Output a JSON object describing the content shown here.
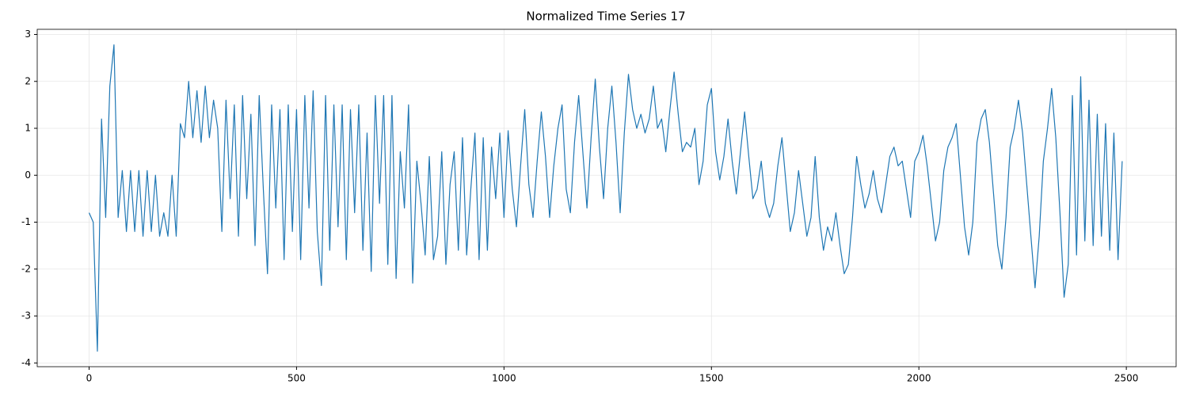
{
  "chart_data": {
    "type": "line",
    "title": "Normalized Time Series 17",
    "x": [
      0,
      10,
      20,
      30,
      40,
      50,
      60,
      70,
      80,
      90,
      100,
      110,
      120,
      130,
      140,
      150,
      160,
      170,
      180,
      190,
      200,
      210,
      220,
      230,
      240,
      250,
      260,
      270,
      280,
      290,
      300,
      310,
      320,
      330,
      340,
      350,
      360,
      370,
      380,
      390,
      400,
      410,
      420,
      430,
      440,
      450,
      460,
      470,
      480,
      490,
      500,
      510,
      520,
      530,
      540,
      550,
      560,
      570,
      580,
      590,
      600,
      610,
      620,
      630,
      640,
      650,
      660,
      670,
      680,
      690,
      700,
      710,
      720,
      730,
      740,
      750,
      760,
      770,
      780,
      790,
      800,
      810,
      820,
      830,
      840,
      850,
      860,
      870,
      880,
      890,
      900,
      910,
      920,
      930,
      940,
      950,
      960,
      970,
      980,
      990,
      1000,
      1010,
      1020,
      1030,
      1040,
      1050,
      1060,
      1070,
      1080,
      1090,
      1100,
      1110,
      1120,
      1130,
      1140,
      1150,
      1160,
      1170,
      1180,
      1190,
      1200,
      1210,
      1220,
      1230,
      1240,
      1250,
      1260,
      1270,
      1280,
      1290,
      1300,
      1310,
      1320,
      1330,
      1340,
      1350,
      1360,
      1370,
      1380,
      1390,
      1400,
      1410,
      1420,
      1430,
      1440,
      1450,
      1460,
      1470,
      1480,
      1490,
      1500,
      1510,
      1520,
      1530,
      1540,
      1550,
      1560,
      1570,
      1580,
      1590,
      1600,
      1610,
      1620,
      1630,
      1640,
      1650,
      1660,
      1670,
      1680,
      1690,
      1700,
      1710,
      1720,
      1730,
      1740,
      1750,
      1760,
      1770,
      1780,
      1790,
      1800,
      1810,
      1820,
      1830,
      1840,
      1850,
      1860,
      1870,
      1880,
      1890,
      1900,
      1910,
      1920,
      1930,
      1940,
      1950,
      1960,
      1970,
      1980,
      1990,
      2000,
      2010,
      2020,
      2030,
      2040,
      2050,
      2060,
      2070,
      2080,
      2090,
      2100,
      2110,
      2120,
      2130,
      2140,
      2150,
      2160,
      2170,
      2180,
      2190,
      2200,
      2210,
      2220,
      2230,
      2240,
      2250,
      2260,
      2270,
      2280,
      2290,
      2300,
      2310,
      2320,
      2330,
      2340,
      2350,
      2360,
      2370,
      2380,
      2390,
      2400,
      2410,
      2420,
      2430,
      2440,
      2450,
      2460,
      2470,
      2480,
      2490
    ],
    "series": [
      {
        "color": "#1f77b4",
        "values": [
          -0.8,
          -1.0,
          -3.75,
          1.2,
          -0.9,
          1.9,
          2.78,
          -0.9,
          0.1,
          -1.2,
          0.1,
          -1.2,
          0.1,
          -1.3,
          0.1,
          -1.2,
          0.0,
          -1.3,
          -0.8,
          -1.3,
          0.0,
          -1.3,
          1.1,
          0.8,
          2.0,
          0.8,
          1.8,
          0.7,
          1.9,
          0.8,
          1.6,
          1.0,
          -1.2,
          1.6,
          -0.5,
          1.5,
          -1.3,
          1.7,
          -0.5,
          1.3,
          -1.5,
          1.7,
          -0.3,
          -2.1,
          1.5,
          -0.7,
          1.4,
          -1.8,
          1.5,
          -1.2,
          1.4,
          -1.8,
          1.7,
          -0.7,
          1.8,
          -1.2,
          -2.35,
          1.7,
          -1.6,
          1.5,
          -1.1,
          1.5,
          -1.8,
          1.4,
          -0.8,
          1.5,
          -1.6,
          0.9,
          -2.05,
          1.7,
          -0.6,
          1.7,
          -1.9,
          1.7,
          -2.2,
          0.5,
          -0.7,
          1.5,
          -2.3,
          0.3,
          -0.6,
          -1.7,
          0.4,
          -1.8,
          -1.3,
          0.5,
          -1.9,
          -0.2,
          0.5,
          -1.6,
          0.8,
          -1.7,
          -0.3,
          0.9,
          -1.8,
          0.8,
          -1.6,
          0.6,
          -0.5,
          0.9,
          -0.9,
          0.95,
          -0.3,
          -1.1,
          0.2,
          1.4,
          -0.2,
          -0.9,
          0.3,
          1.35,
          0.4,
          -0.9,
          0.2,
          1.0,
          1.5,
          -0.3,
          -0.8,
          0.7,
          1.7,
          0.5,
          -0.7,
          0.8,
          2.05,
          0.6,
          -0.5,
          1.0,
          1.9,
          0.7,
          -0.8,
          0.9,
          2.15,
          1.4,
          1.0,
          1.3,
          0.9,
          1.2,
          1.9,
          1.0,
          1.2,
          0.5,
          1.4,
          2.2,
          1.3,
          0.5,
          0.7,
          0.6,
          1.0,
          -0.2,
          0.3,
          1.5,
          1.85,
          0.5,
          -0.1,
          0.4,
          1.2,
          0.3,
          -0.4,
          0.5,
          1.35,
          0.4,
          -0.5,
          -0.3,
          0.3,
          -0.6,
          -0.9,
          -0.6,
          0.2,
          0.8,
          -0.2,
          -1.2,
          -0.8,
          0.1,
          -0.6,
          -1.3,
          -0.9,
          0.4,
          -0.9,
          -1.6,
          -1.1,
          -1.4,
          -0.8,
          -1.5,
          -2.1,
          -1.9,
          -0.9,
          0.4,
          -0.2,
          -0.7,
          -0.4,
          0.1,
          -0.5,
          -0.8,
          -0.2,
          0.4,
          0.6,
          0.2,
          0.3,
          -0.3,
          -0.9,
          0.3,
          0.5,
          0.85,
          0.2,
          -0.6,
          -1.4,
          -1.0,
          0.1,
          0.6,
          0.8,
          1.1,
          0.0,
          -1.1,
          -1.7,
          -1.0,
          0.7,
          1.2,
          1.4,
          0.7,
          -0.4,
          -1.5,
          -2.0,
          -0.9,
          0.6,
          1.0,
          1.6,
          0.9,
          -0.2,
          -1.3,
          -2.4,
          -1.3,
          0.3,
          1.0,
          1.85,
          0.8,
          -0.8,
          -2.6,
          -1.9,
          1.7,
          -1.7,
          2.1,
          -1.4,
          1.6,
          -1.5,
          1.3,
          -1.3,
          1.1,
          -1.6,
          0.9,
          -1.8,
          0.3
        ]
      }
    ],
    "xlim": [
      -125,
      2620
    ],
    "ylim": [
      -4.08,
      3.11
    ],
    "xticks": [
      0,
      500,
      1000,
      1500,
      2000,
      2500
    ],
    "yticks": [
      -4,
      -3,
      -2,
      -1,
      0,
      1,
      2,
      3
    ],
    "grid": true
  }
}
